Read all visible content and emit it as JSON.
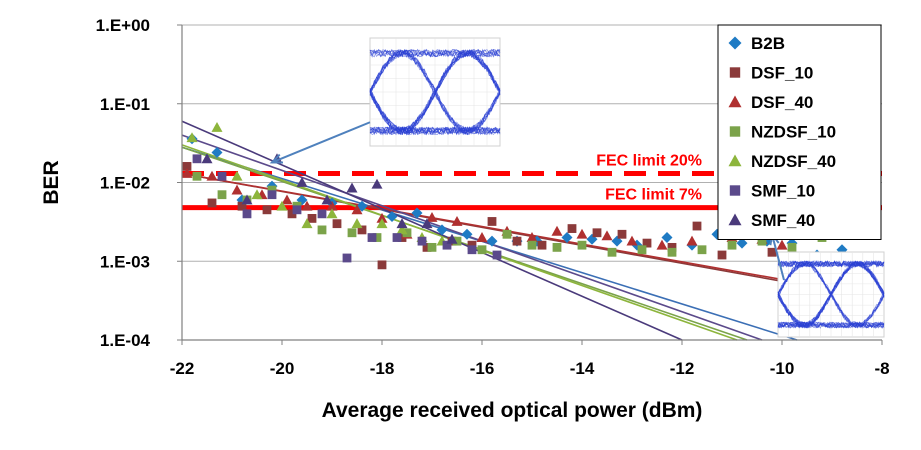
{
  "chart_data": {
    "type": "scatter",
    "xlabel": "Average received optical power (dBm)",
    "ylabel": "BER",
    "xlim": [
      -22,
      -8
    ],
    "ylim": [
      0.0001,
      1
    ],
    "y_scale": "log",
    "x_ticks": [
      "-22",
      "-20",
      "-18",
      "-16",
      "-14",
      "-12",
      "-10",
      "-8"
    ],
    "y_ticks": [
      "1.E-04",
      "1.E-03",
      "1.E-02",
      "1.E-01",
      "1.E+00"
    ],
    "grid": "horizontal",
    "legend_position": "top-right",
    "series": [
      {
        "name": "B2B",
        "marker": "diamond",
        "color": "#1f7bc4",
        "x": [
          -21.8,
          -21.3,
          -20.8,
          -20.2,
          -19.6,
          -19.0,
          -18.4,
          -17.8,
          -17.3,
          -16.8,
          -16.3,
          -15.8,
          -15.3,
          -14.9,
          -14.3,
          -13.8,
          -13.3,
          -12.9,
          -12.3,
          -11.8,
          -11.3,
          -10.8,
          -10.3,
          -9.8,
          -9.3,
          -8.8,
          -8.3
        ],
        "y": [
          0.036,
          0.024,
          0.006,
          0.009,
          0.006,
          0.0055,
          0.005,
          0.0037,
          0.0041,
          0.0025,
          0.0022,
          0.0018,
          0.0018,
          0.0018,
          0.002,
          0.0019,
          0.0018,
          0.0016,
          0.002,
          0.0016,
          0.0022,
          0.0017,
          0.0018,
          0.0017,
          0.0012,
          0.0014,
          0.0011
        ]
      },
      {
        "name": "DSF_10",
        "marker": "square",
        "color": "#8b3a3a",
        "x": [
          -21.9,
          -21.4,
          -20.8,
          -20.3,
          -19.8,
          -19.4,
          -18.9,
          -18.4,
          -18.0,
          -17.6,
          -17.1,
          -16.6,
          -16.2,
          -15.8,
          -15.3,
          -14.8,
          -14.2,
          -13.7,
          -13.2,
          -12.7,
          -12.2,
          -11.7,
          -11.2,
          -10.7,
          -10.2
        ],
        "y": [
          0.016,
          0.0055,
          0.005,
          0.0045,
          0.004,
          0.0035,
          0.003,
          0.0025,
          0.0009,
          0.002,
          0.0015,
          0.0018,
          0.0016,
          0.0032,
          0.0018,
          0.0016,
          0.0026,
          0.0023,
          0.0022,
          0.0017,
          0.0015,
          0.0028,
          0.0012,
          0.0025,
          0.0013
        ]
      },
      {
        "name": "DSF_40",
        "marker": "triangle",
        "color": "#b03030",
        "x": [
          -21.9,
          -21.4,
          -20.9,
          -20.4,
          -19.9,
          -19.5,
          -19.0,
          -18.5,
          -18.0,
          -17.5,
          -17.0,
          -16.5,
          -16.0,
          -15.5,
          -15.0,
          -14.5,
          -14.0,
          -13.5,
          -13.0,
          -12.4,
          -11.8,
          -11.0,
          -10.4,
          -10.0
        ],
        "y": [
          0.013,
          0.012,
          0.008,
          0.007,
          0.006,
          0.005,
          0.005,
          0.0045,
          0.0035,
          0.0022,
          0.0036,
          0.0032,
          0.002,
          0.0024,
          0.002,
          0.0024,
          0.0022,
          0.0021,
          0.0018,
          0.0016,
          0.0018,
          0.002,
          0.0019,
          0.0016
        ]
      },
      {
        "name": "NZDSF_10",
        "marker": "square",
        "color": "#7ba34a",
        "x": [
          -21.7,
          -21.2,
          -20.7,
          -20.2,
          -19.7,
          -19.2,
          -18.6,
          -18.1,
          -17.5,
          -17.0,
          -16.5,
          -16.0,
          -15.5,
          -15.0,
          -14.5,
          -14.0,
          -13.4,
          -12.8,
          -12.2,
          -11.6,
          -11.0,
          -10.4,
          -9.8,
          -9.2
        ],
        "y": [
          0.012,
          0.007,
          0.006,
          0.008,
          0.005,
          0.0025,
          0.0023,
          0.002,
          0.0023,
          0.0015,
          0.0018,
          0.0014,
          0.0022,
          0.0016,
          0.0015,
          0.0016,
          0.0013,
          0.0014,
          0.0013,
          0.0014,
          0.0016,
          0.0018,
          0.0015,
          0.002
        ]
      },
      {
        "name": "NZDSF_40",
        "marker": "triangle",
        "color": "#8db53c",
        "x": [
          -21.8,
          -21.3,
          -20.9,
          -20.5,
          -20.0,
          -19.5,
          -19.0,
          -18.5,
          -18.0,
          -17.6,
          -17.2,
          -16.8
        ],
        "y": [
          0.037,
          0.05,
          0.012,
          0.007,
          0.005,
          0.003,
          0.004,
          0.003,
          0.003,
          0.0025,
          0.002,
          0.0018
        ]
      },
      {
        "name": "SMF_10",
        "marker": "square",
        "color": "#5b4a8b",
        "x": [
          -21.7,
          -21.2,
          -20.7,
          -20.2,
          -19.7,
          -19.2,
          -18.7,
          -18.2,
          -17.7,
          -17.2,
          -16.7,
          -16.2,
          -15.7
        ],
        "y": [
          0.02,
          0.012,
          0.004,
          0.007,
          0.0045,
          0.004,
          0.0011,
          0.002,
          0.002,
          0.0018,
          0.0016,
          0.0014,
          0.0012
        ]
      },
      {
        "name": "SMF_40",
        "marker": "triangle",
        "color": "#4a3a7b",
        "x": [
          -21.5,
          -20.7,
          -20.1,
          -19.6,
          -19.1,
          -18.6,
          -18.1,
          -17.6,
          -17.1,
          -16.6
        ],
        "y": [
          0.02,
          0.006,
          0.02,
          0.01,
          0.006,
          0.0085,
          0.0095,
          0.003,
          0.003,
          0.0019
        ]
      }
    ],
    "fits": [
      {
        "color": "#3b6fb5",
        "x": [
          -22,
          -9.7
        ],
        "y": [
          0.028,
          0.0001
        ]
      },
      {
        "color": "#8b3a3a",
        "x": [
          -22,
          -8
        ],
        "y": [
          0.013,
          0.00033
        ]
      },
      {
        "color": "#b03030",
        "x": [
          -22,
          -8
        ],
        "y": [
          0.013,
          0.00035
        ]
      },
      {
        "color": "#7ba34a",
        "x": [
          -22,
          -10.7
        ],
        "y": [
          0.028,
          0.0001
        ]
      },
      {
        "color": "#8db53c",
        "x": [
          -22,
          -10.9
        ],
        "y": [
          0.03,
          0.0001
        ]
      },
      {
        "color": "#5b4a8b",
        "x": [
          -22,
          -10.4
        ],
        "y": [
          0.04,
          0.0001
        ]
      },
      {
        "color": "#4a3a7b",
        "x": [
          -22,
          -12.0
        ],
        "y": [
          0.06,
          0.0001
        ]
      }
    ],
    "thresholds": [
      {
        "label": "FEC limit 20%",
        "y": 0.013,
        "style": "dashed",
        "color": "#ff0000"
      },
      {
        "label": "FEC limit 7%",
        "y": 0.0048,
        "style": "solid",
        "color": "#ff0000"
      }
    ],
    "insets": [
      {
        "name": "eye-diagram-top",
        "color": "#2a3fd4",
        "arrow_to": {
          "x": -20.2,
          "y": 0.018
        }
      },
      {
        "name": "eye-diagram-bottom",
        "color": "#2a3fd4",
        "arrow_to": {
          "x": -10.2,
          "y": 0.0022
        }
      }
    ]
  }
}
